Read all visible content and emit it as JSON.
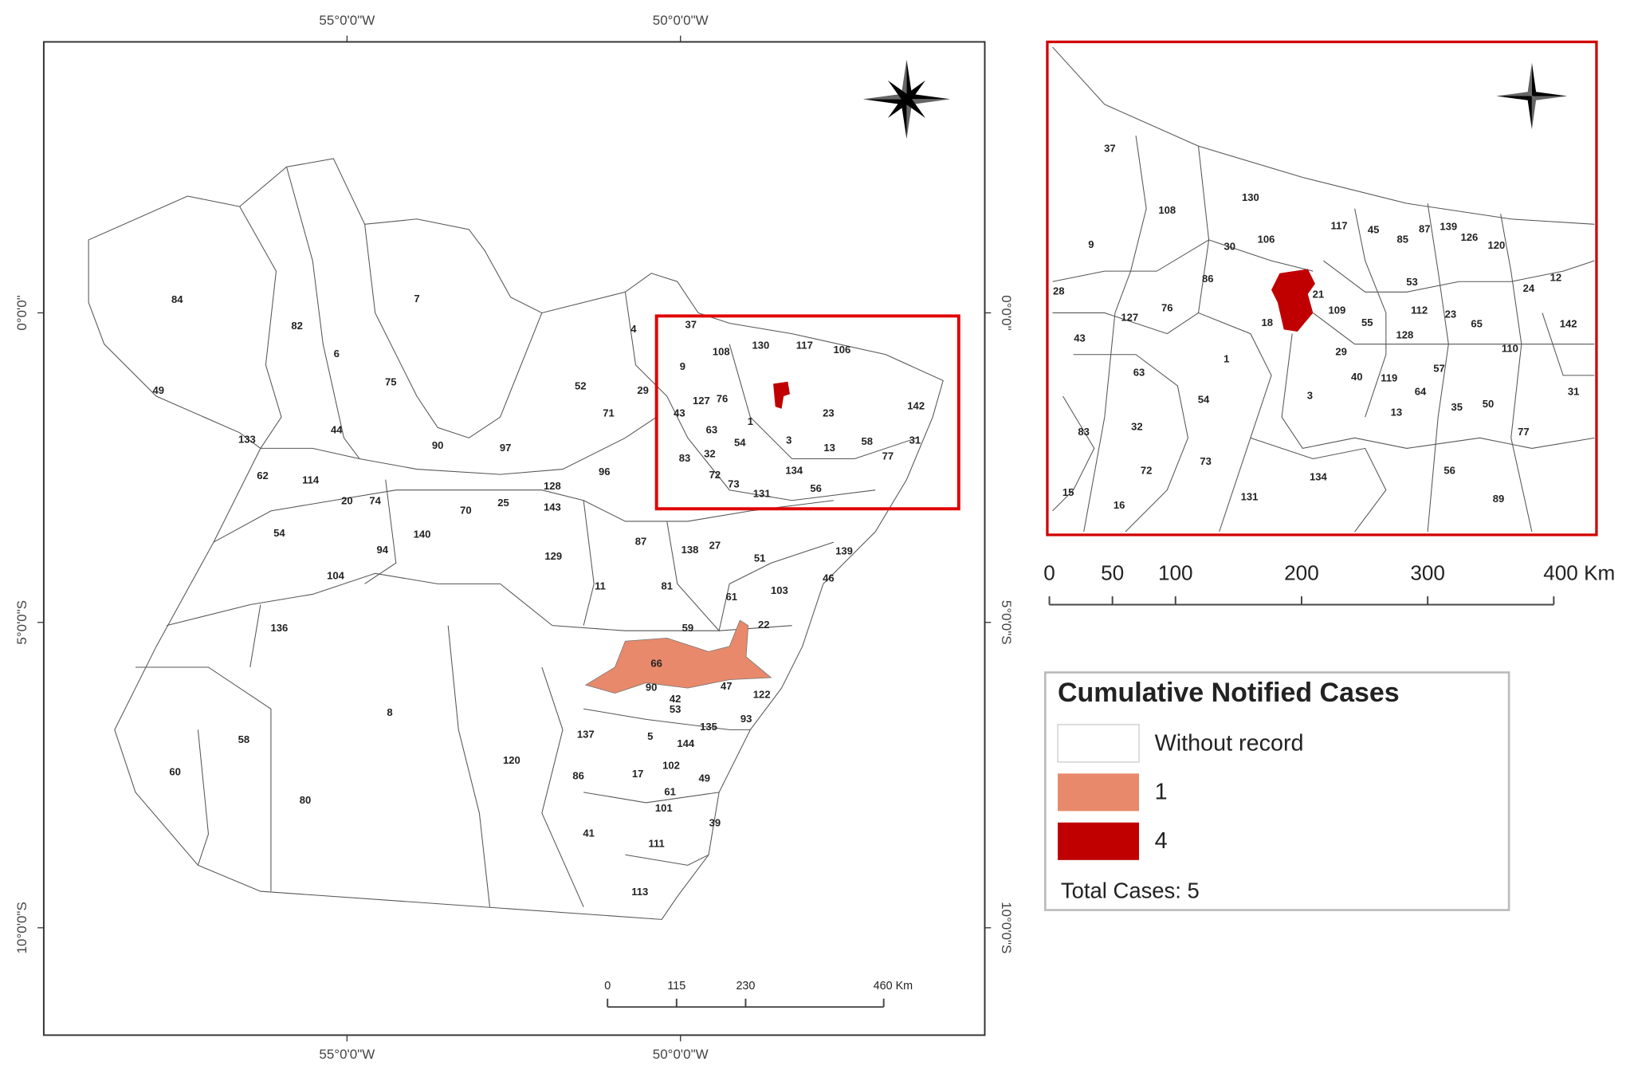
{
  "main_map": {
    "graticule": {
      "top": [
        "55°0'0\"W",
        "50°0'0\"W"
      ],
      "bottom": [
        "55°0'0\"W",
        "50°0'0\"W"
      ],
      "left": [
        "0°0'0\"",
        "5°0'0\"S",
        "10°0'0\"S"
      ],
      "right": [
        "0°0'0\"",
        "5°0'0\"S",
        "10°0'0\"S"
      ]
    },
    "municipality_labels": [
      "84",
      "82",
      "7",
      "6",
      "75",
      "49",
      "133",
      "44",
      "90",
      "97",
      "62",
      "114",
      "20",
      "74",
      "70",
      "25",
      "128",
      "143",
      "96",
      "54",
      "94",
      "140",
      "104",
      "129",
      "87",
      "138",
      "27",
      "51",
      "139",
      "46",
      "11",
      "81",
      "103",
      "61",
      "136",
      "59",
      "22",
      "66",
      "90",
      "42",
      "47",
      "122",
      "53",
      "93",
      "8",
      "120",
      "137",
      "5",
      "144",
      "135",
      "58",
      "60",
      "86",
      "17",
      "102",
      "49",
      "61",
      "80",
      "101",
      "39",
      "41",
      "111",
      "113",
      "4",
      "52",
      "29",
      "71",
      "37",
      "9",
      "43",
      "83",
      "63",
      "32",
      "72",
      "73",
      "131",
      "134",
      "56",
      "31",
      "142",
      "130",
      "117",
      "106",
      "1",
      "54",
      "3",
      "23",
      "13",
      "77",
      "58",
      "76",
      "127",
      "108"
    ],
    "scale_bar": {
      "ticks": [
        0,
        115,
        230,
        {
          "value": 460,
          "label": "460 Km"
        }
      ]
    }
  },
  "inset_map": {
    "municipality_labels": [
      "37",
      "130",
      "108",
      "106",
      "30",
      "9",
      "86",
      "28",
      "76",
      "127",
      "43",
      "1",
      "18",
      "29",
      "63",
      "54",
      "3",
      "40",
      "119",
      "57",
      "64",
      "13",
      "35",
      "50",
      "83",
      "32",
      "77",
      "72",
      "73",
      "134",
      "56",
      "15",
      "16",
      "131",
      "89",
      "31",
      "142",
      "12",
      "24",
      "110",
      "65",
      "23",
      "112",
      "128",
      "55",
      "109",
      "117",
      "45",
      "85",
      "87",
      "139",
      "126",
      "120",
      "53",
      "21"
    ],
    "scale_bar": {
      "ticks": [
        0,
        50,
        100,
        200,
        300,
        {
          "value": 400,
          "label": "400 Km"
        }
      ]
    }
  },
  "legend": {
    "title": "Cumulative Notified Cases",
    "items": [
      {
        "label": "Without record",
        "color": "#ffffff"
      },
      {
        "label": "1",
        "color": "#e8896b"
      },
      {
        "label": "4",
        "color": "#c00000"
      }
    ],
    "total": "Total Cases: 5"
  }
}
